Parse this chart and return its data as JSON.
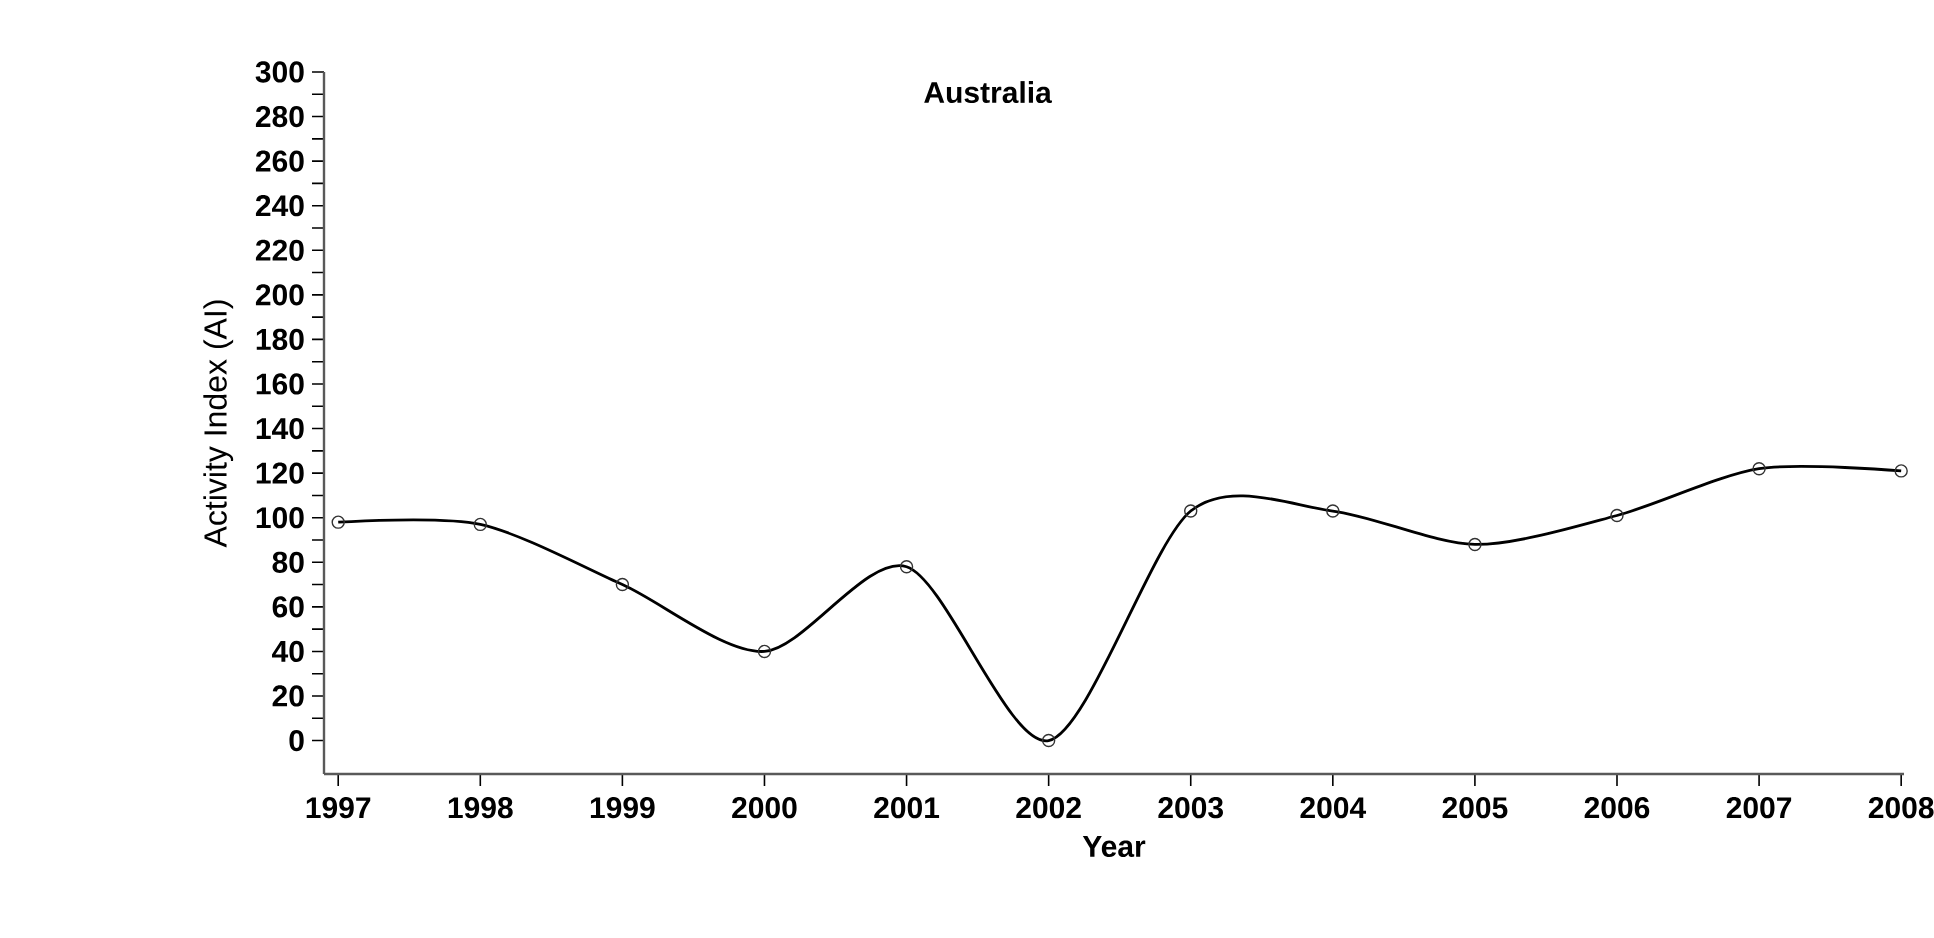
{
  "chart_data": {
    "type": "line",
    "title": "Australia",
    "xlabel": "Year",
    "ylabel": "Activity Index (AI)",
    "categories": [
      "1997",
      "1998",
      "1999",
      "2000",
      "2001",
      "2002",
      "2003",
      "2004",
      "2005",
      "2006",
      "2007",
      "2008"
    ],
    "series": [
      {
        "color": "#000000",
        "values": [
          98,
          97,
          70,
          40,
          78,
          0,
          103,
          103,
          88,
          101,
          122,
          121
        ]
      }
    ],
    "ylim": [
      -15,
      300
    ],
    "yticks": [
      0,
      20,
      40,
      60,
      80,
      100,
      120,
      140,
      160,
      180,
      200,
      220,
      240,
      260,
      280,
      300
    ],
    "marker": "circle",
    "line_style": "solid"
  }
}
